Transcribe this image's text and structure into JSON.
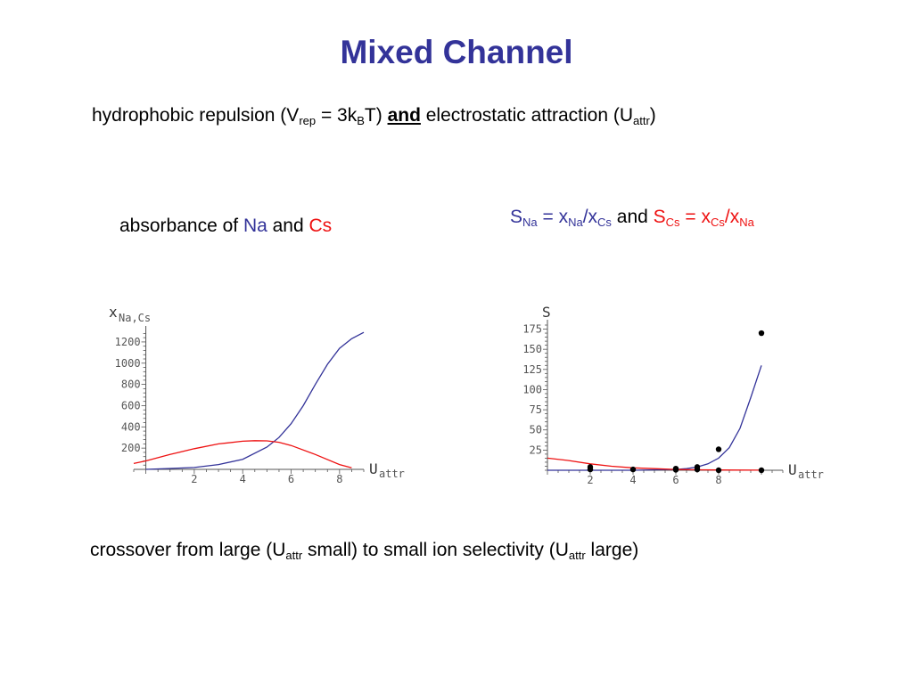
{
  "slide": {
    "title": "Mixed Channel",
    "subtitle": {
      "p1": "hydrophobic repulsion (V",
      "p2": "rep",
      "p3": " = 3k",
      "p4": "B",
      "p5": "T) ",
      "p6": "and",
      "p7": " electrostatic attraction (U",
      "p8": "attr",
      "p9": ")"
    },
    "absorbance": {
      "p1": "absorbance of ",
      "na": "Na",
      "p2": " and ",
      "cs": "Cs"
    },
    "selectivity": {
      "s": "S",
      "na1": "Na",
      "eq1": " = x",
      "na2": "Na",
      "sl1": "/x",
      "cs1": "Cs",
      "and": " and ",
      "s2": "S",
      "cs2": "Cs",
      "eq2": " = x",
      "cs3": "Cs",
      "sl2": "/x",
      "na3": "Na"
    },
    "crossover": {
      "p1": "crossover from large (U",
      "s1": "attr",
      "p2": " small) to small ion selectivity (U",
      "s2": "attr",
      "p3": " large)"
    }
  },
  "colors": {
    "title": "#333399",
    "na": "#333399",
    "cs": "#ee1111",
    "axis": "#555555"
  },
  "chart_data": [
    {
      "type": "line",
      "ylabel_main": "x",
      "ylabel_sub": "Na,Cs",
      "xlabel_main": "U",
      "xlabel_sub": "attr",
      "xlim": [
        -0.5,
        9
      ],
      "ylim": [
        0,
        1300
      ],
      "xticks": [
        2,
        4,
        6,
        8
      ],
      "yticks": [
        200,
        400,
        600,
        800,
        1000,
        1200
      ],
      "grid": false,
      "series": [
        {
          "color": "#333399",
          "x": [
            0,
            1,
            2,
            3,
            4,
            5,
            5.5,
            6,
            6.5,
            7,
            7.5,
            8,
            8.5,
            9
          ],
          "y": [
            0,
            8,
            18,
            45,
            95,
            210,
            300,
            430,
            600,
            800,
            990,
            1140,
            1230,
            1290
          ]
        },
        {
          "color": "#ee1111",
          "x": [
            -0.5,
            0,
            1,
            2,
            3,
            4,
            4.5,
            5,
            5.5,
            6,
            7,
            8,
            8.5
          ],
          "y": [
            55,
            80,
            140,
            195,
            240,
            265,
            270,
            268,
            255,
            225,
            140,
            45,
            15
          ]
        }
      ]
    },
    {
      "type": "line",
      "ylabel_main": "S",
      "xlabel_main": "U",
      "xlabel_sub": "attr",
      "xlim": [
        0,
        11
      ],
      "ylim": [
        0,
        180
      ],
      "xticks": [
        2,
        4,
        6,
        8
      ],
      "yticks": [
        25,
        50,
        75,
        100,
        125,
        150,
        175
      ],
      "grid": false,
      "series": [
        {
          "color": "#333399",
          "x": [
            0,
            2,
            4,
            5,
            6,
            6.5,
            7,
            7.5,
            8,
            8.5,
            9,
            9.5,
            10
          ],
          "y": [
            0,
            0,
            0,
            0.5,
            1,
            2,
            4,
            8,
            15,
            28,
            52,
            90,
            130
          ]
        },
        {
          "color": "#ee1111",
          "x": [
            0,
            1,
            2,
            3,
            4,
            5,
            6,
            7,
            8,
            9,
            10
          ],
          "y": [
            15,
            12,
            8,
            5,
            3,
            2,
            1,
            0.5,
            0.3,
            0.2,
            0.1
          ]
        }
      ],
      "points": {
        "color": "#000000",
        "x": [
          2,
          2,
          4,
          6,
          6,
          7,
          7,
          8,
          8,
          10,
          10
        ],
        "y": [
          4,
          1,
          1,
          2,
          0.5,
          4,
          1,
          26,
          0,
          170,
          0
        ]
      }
    }
  ]
}
